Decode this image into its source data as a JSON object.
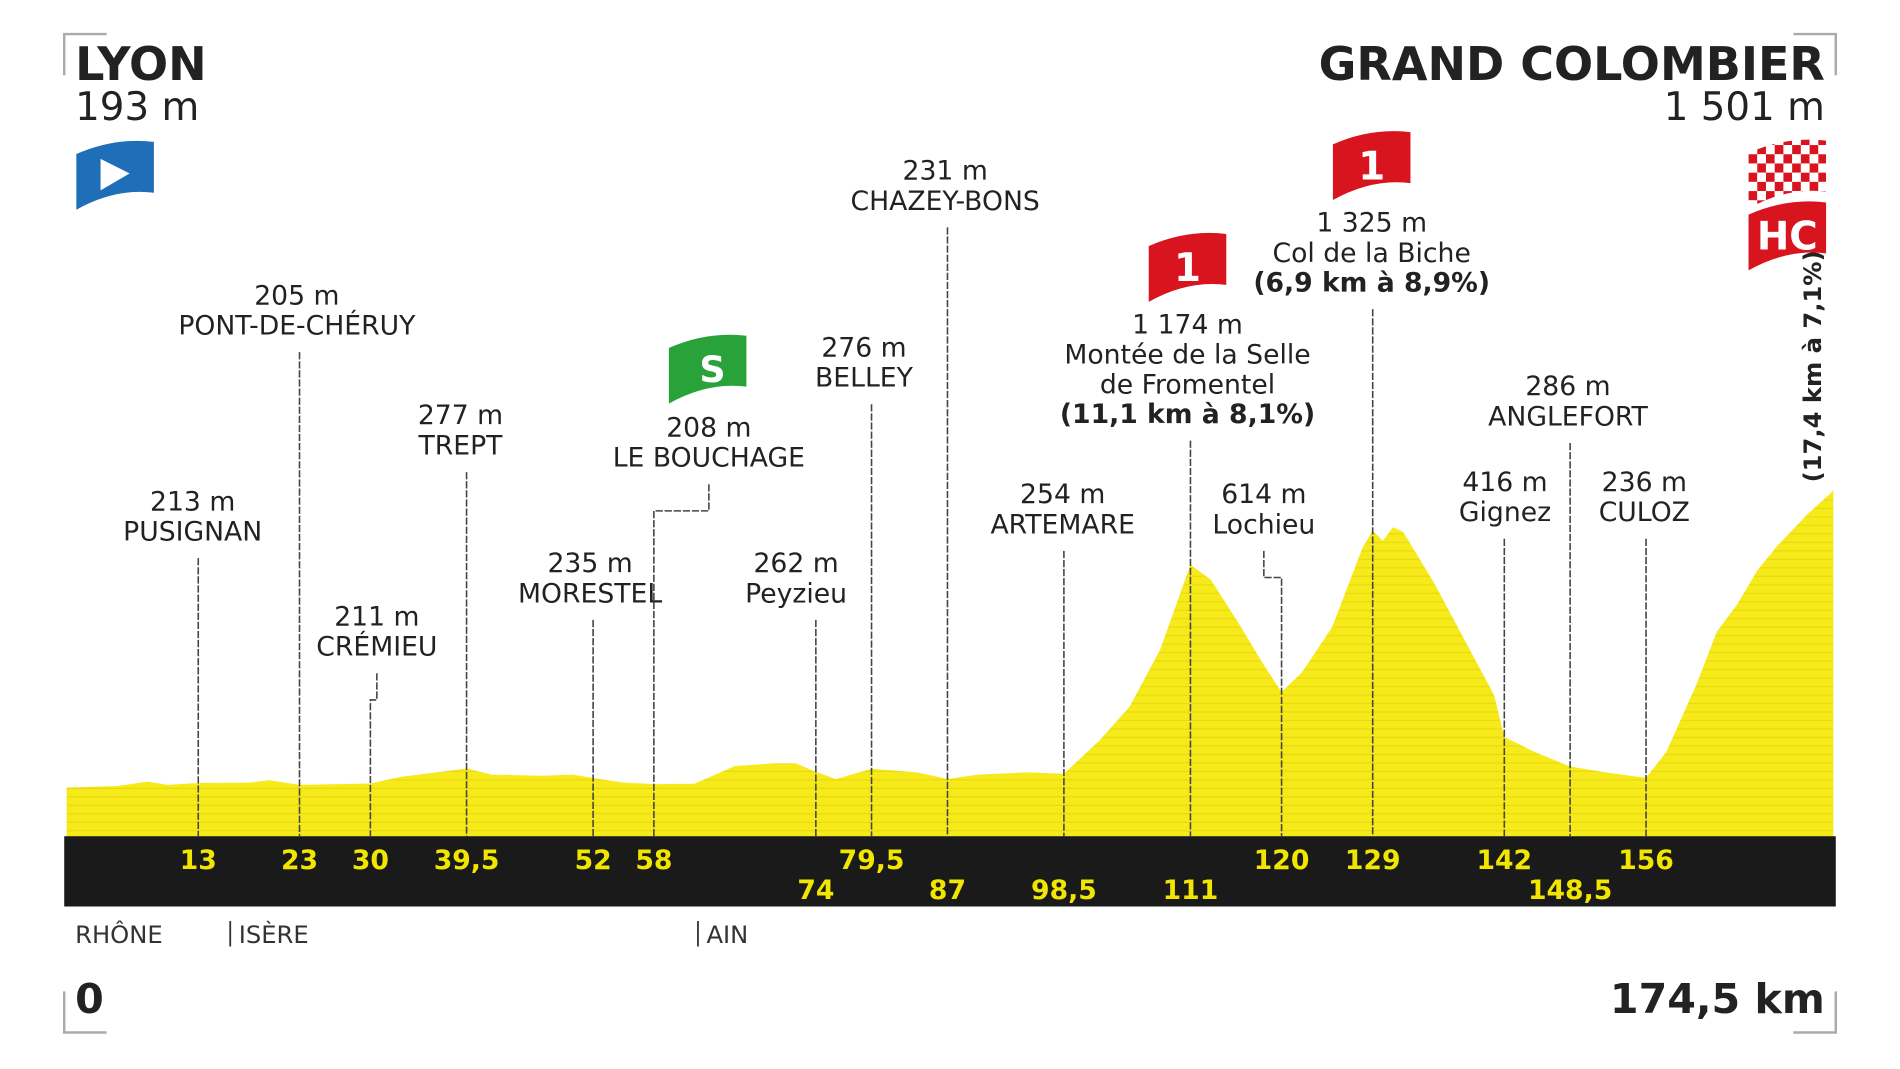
{
  "start": {
    "name": "LYON",
    "altitude": "193 m"
  },
  "finish": {
    "name": "GRAND COLOMBIER",
    "altitude": "1 501 m",
    "category": "HC",
    "climb": "(17,4 km à 7,1%)"
  },
  "distance": {
    "start": 0,
    "end": {
      "value": 174.5,
      "label": "174,5 km"
    }
  },
  "waypoints": [
    {
      "km": 13,
      "altitude": "213 m",
      "name": [
        "PUSIGNAN"
      ]
    },
    {
      "km": 23,
      "altitude": "205 m",
      "name": [
        "PONT-DE-CHÉRUY"
      ]
    },
    {
      "km": 30,
      "altitude": "211 m",
      "name": [
        "CRÉMIEU"
      ]
    },
    {
      "km": {
        "value": 39.5,
        "label": "39,5"
      },
      "altitude": "277 m",
      "name": [
        "TREPT"
      ]
    },
    {
      "km": 52,
      "altitude": "235 m",
      "name": [
        "MORESTEL"
      ]
    },
    {
      "km": 58,
      "altitude": "208 m",
      "name": [
        "LE BOUCHAGE"
      ],
      "sprint": "S"
    },
    {
      "km": 74,
      "altitude": "262 m",
      "name": [
        "Peyzieu"
      ]
    },
    {
      "km": {
        "value": 79.5,
        "label": "79,5"
      },
      "altitude": "276 m",
      "name": [
        "BELLEY"
      ]
    },
    {
      "km": 87,
      "altitude": "231 m",
      "name": [
        "CHAZEY-BONS"
      ]
    },
    {
      "km": {
        "value": 98.5,
        "label": "98,5"
      },
      "altitude": "254 m",
      "name": [
        "ARTEMARE"
      ]
    },
    {
      "km": 111,
      "altitude": "1 174 m",
      "name": [
        "Montée de la Selle",
        "de Fromentel"
      ],
      "climb": "(11,1 km à 8,1%)",
      "category": "1"
    },
    {
      "km": 120,
      "altitude": "614 m",
      "name": [
        "Lochieu"
      ]
    },
    {
      "km": 129,
      "altitude": "1 325 m",
      "name": [
        "Col de la Biche"
      ],
      "climb": "(6,9 km à 8,9%)",
      "category": "1"
    },
    {
      "km": 142,
      "altitude": "416 m",
      "name": [
        "Gignez"
      ]
    },
    {
      "km": {
        "value": 148.5,
        "label": "148,5"
      },
      "altitude": "286 m",
      "name": [
        "ANGLEFORT"
      ]
    },
    {
      "km": 156,
      "altitude": "236 m",
      "name": [
        "CULOZ"
      ]
    }
  ],
  "regions": [
    "RHÔNE",
    "ISÈRE",
    "AIN"
  ],
  "profile": {
    "km": [
      0,
      5,
      8,
      10,
      13,
      18,
      20,
      23,
      30,
      33,
      39.5,
      42,
      47,
      50,
      52,
      55,
      58,
      62,
      66,
      70,
      72,
      74,
      76,
      79.5,
      84,
      87,
      90,
      95,
      98.5,
      102,
      105,
      108,
      110,
      111,
      113,
      116,
      118,
      120,
      122,
      125,
      128,
      129,
      130,
      131,
      132,
      135,
      138,
      141,
      142,
      145,
      148.5,
      152,
      156,
      158,
      161,
      163,
      165,
      167,
      169,
      172,
      174.5
    ],
    "elevation": [
      193,
      200,
      219,
      205,
      213,
      215,
      225,
      205,
      211,
      240,
      277,
      250,
      245,
      250,
      235,
      215,
      208,
      210,
      288,
      300,
      300,
      262,
      230,
      276,
      260,
      231,
      250,
      260,
      254,
      400,
      550,
      800,
      1050,
      1174,
      1110,
      900,
      750,
      614,
      700,
      900,
      1250,
      1325,
      1280,
      1340,
      1320,
      1100,
      850,
      600,
      416,
      350,
      286,
      260,
      236,
      350,
      650,
      880,
      1000,
      1150,
      1260,
      1400,
      1501
    ]
  }
}
